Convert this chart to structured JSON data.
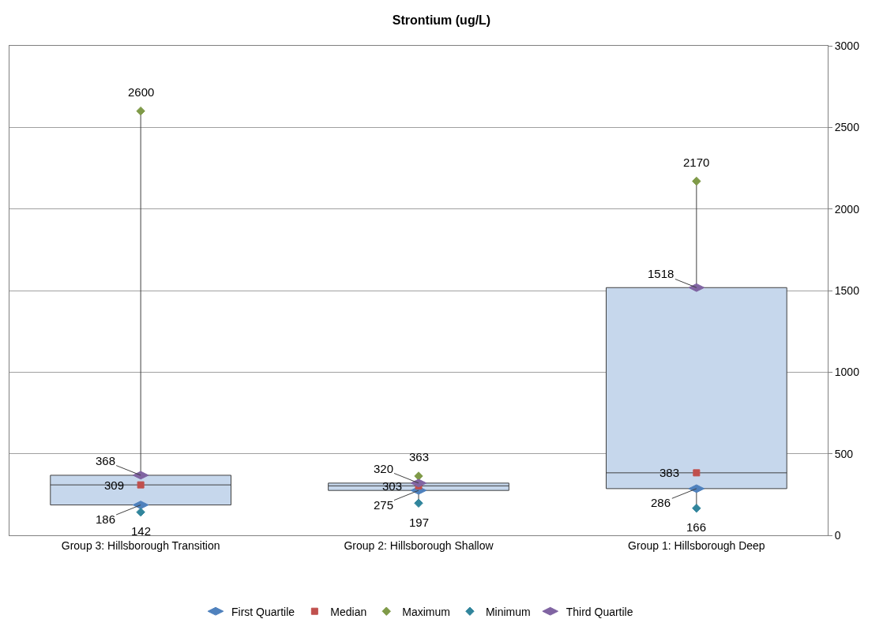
{
  "chart_data": {
    "type": "box",
    "title": "Strontium (ug/L)",
    "categories": [
      "Group 3: Hillsborough Transition",
      "Group 2: Hillsborough Shallow",
      "Group 1: Hillsborough Deep"
    ],
    "color": "#c6d7ec",
    "boxes": [
      {
        "low": 142,
        "q1": 186,
        "median": 309,
        "q3": 368,
        "high": 2600
      },
      {
        "low": 197,
        "q1": 275,
        "median": 303,
        "q3": 320,
        "high": 363
      },
      {
        "low": 166,
        "q1": 286,
        "median": 383,
        "q3": 1518,
        "high": 2170
      }
    ],
    "series": [
      {
        "name": "First Quartile",
        "type": "scatter",
        "color": "#4f81bd",
        "values": [
          186,
          275,
          286
        ]
      },
      {
        "name": "Median",
        "type": "scatter",
        "color": "#c0504d",
        "marker": "square",
        "values": [
          309,
          303,
          383
        ]
      },
      {
        "name": "Maximum",
        "type": "scatter",
        "color": "#7f9a48",
        "marker": "diamond",
        "values": [
          2600,
          363,
          2170
        ]
      },
      {
        "name": "Minimum",
        "type": "scatter",
        "color": "#31859c",
        "marker": "diamond",
        "values": [
          142,
          197,
          166
        ]
      },
      {
        "name": "Third Quartile",
        "type": "scatter",
        "color": "#8064a2",
        "values": [
          368,
          320,
          1518
        ]
      }
    ],
    "data_labels": true,
    "ylim": [
      0,
      3000
    ],
    "yticks": [
      0,
      500,
      1000,
      1500,
      2000,
      2500,
      3000
    ],
    "grid": "y",
    "legend": "bottom"
  }
}
